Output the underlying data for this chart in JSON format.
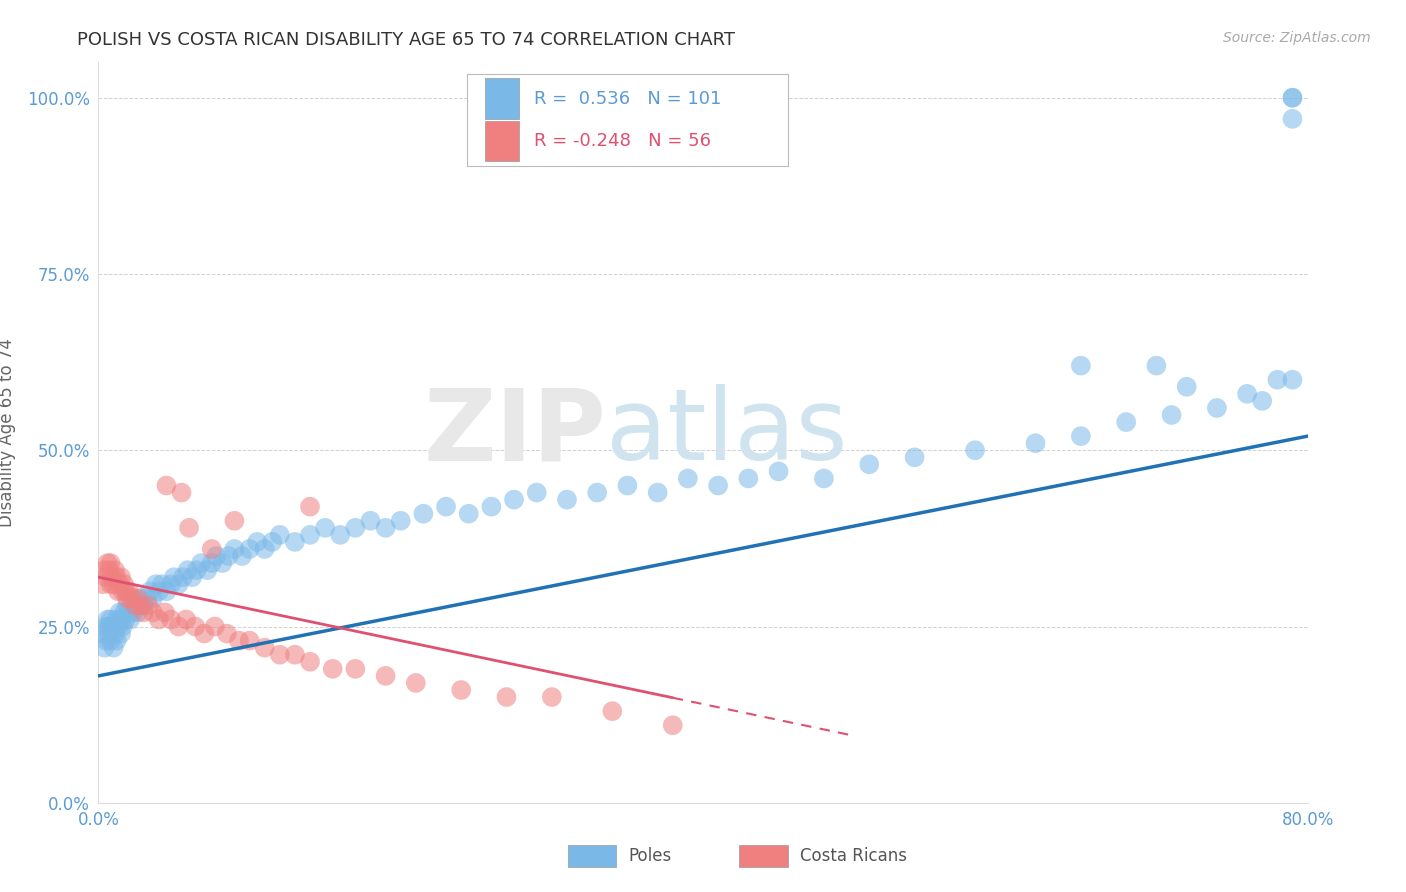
{
  "title": "POLISH VS COSTA RICAN DISABILITY AGE 65 TO 74 CORRELATION CHART",
  "source_text": "Source: ZipAtlas.com",
  "ylabel": "Disability Age 65 to 74",
  "xlabel_poles": "Poles",
  "xlabel_costa": "Costa Ricans",
  "xmin": 0.0,
  "xmax": 0.8,
  "ymin": 0.0,
  "ymax": 1.05,
  "yticks": [
    0.0,
    0.25,
    0.5,
    0.75,
    1.0
  ],
  "ytick_labels": [
    "0.0%",
    "25.0%",
    "50.0%",
    "75.0%",
    "100.0%"
  ],
  "xtick_positions": [
    0.0,
    0.16,
    0.32,
    0.48,
    0.64,
    0.8
  ],
  "xtick_labels": [
    "0.0%",
    "",
    "",
    "",
    "",
    "80.0%"
  ],
  "poles_color": "#7ab8e8",
  "costa_color": "#f08080",
  "poles_R": 0.536,
  "poles_N": 101,
  "costa_R": -0.248,
  "costa_N": 56,
  "poles_scatter_x": [
    0.003,
    0.004,
    0.005,
    0.005,
    0.006,
    0.007,
    0.007,
    0.008,
    0.008,
    0.009,
    0.01,
    0.01,
    0.011,
    0.012,
    0.012,
    0.013,
    0.014,
    0.015,
    0.015,
    0.016,
    0.017,
    0.018,
    0.019,
    0.02,
    0.021,
    0.022,
    0.023,
    0.024,
    0.025,
    0.026,
    0.027,
    0.028,
    0.03,
    0.032,
    0.034,
    0.036,
    0.038,
    0.04,
    0.042,
    0.045,
    0.048,
    0.05,
    0.053,
    0.056,
    0.059,
    0.062,
    0.065,
    0.068,
    0.072,
    0.075,
    0.078,
    0.082,
    0.086,
    0.09,
    0.095,
    0.1,
    0.105,
    0.11,
    0.115,
    0.12,
    0.13,
    0.14,
    0.15,
    0.16,
    0.17,
    0.18,
    0.19,
    0.2,
    0.215,
    0.23,
    0.245,
    0.26,
    0.275,
    0.29,
    0.31,
    0.33,
    0.35,
    0.37,
    0.39,
    0.41,
    0.43,
    0.45,
    0.48,
    0.51,
    0.54,
    0.58,
    0.62,
    0.65,
    0.68,
    0.71,
    0.74,
    0.76,
    0.77,
    0.78,
    0.79,
    0.65,
    0.7,
    0.72,
    0.79,
    0.79,
    0.79
  ],
  "poles_scatter_y": [
    0.24,
    0.22,
    0.25,
    0.23,
    0.26,
    0.24,
    0.25,
    0.26,
    0.23,
    0.25,
    0.22,
    0.25,
    0.24,
    0.26,
    0.23,
    0.25,
    0.27,
    0.24,
    0.26,
    0.25,
    0.27,
    0.26,
    0.28,
    0.27,
    0.26,
    0.28,
    0.27,
    0.29,
    0.28,
    0.27,
    0.28,
    0.29,
    0.28,
    0.29,
    0.3,
    0.29,
    0.31,
    0.3,
    0.31,
    0.3,
    0.31,
    0.32,
    0.31,
    0.32,
    0.33,
    0.32,
    0.33,
    0.34,
    0.33,
    0.34,
    0.35,
    0.34,
    0.35,
    0.36,
    0.35,
    0.36,
    0.37,
    0.36,
    0.37,
    0.38,
    0.37,
    0.38,
    0.39,
    0.38,
    0.39,
    0.4,
    0.39,
    0.4,
    0.41,
    0.42,
    0.41,
    0.42,
    0.43,
    0.44,
    0.43,
    0.44,
    0.45,
    0.44,
    0.46,
    0.45,
    0.46,
    0.47,
    0.46,
    0.48,
    0.49,
    0.5,
    0.51,
    0.52,
    0.54,
    0.55,
    0.56,
    0.58,
    0.57,
    0.6,
    0.6,
    0.62,
    0.62,
    0.59,
    1.0,
    1.0,
    0.97
  ],
  "costa_scatter_x": [
    0.003,
    0.004,
    0.005,
    0.006,
    0.007,
    0.008,
    0.008,
    0.009,
    0.01,
    0.011,
    0.012,
    0.013,
    0.014,
    0.015,
    0.016,
    0.017,
    0.018,
    0.019,
    0.02,
    0.022,
    0.024,
    0.026,
    0.028,
    0.03,
    0.033,
    0.036,
    0.04,
    0.044,
    0.048,
    0.053,
    0.058,
    0.064,
    0.07,
    0.077,
    0.085,
    0.093,
    0.1,
    0.11,
    0.12,
    0.13,
    0.14,
    0.155,
    0.17,
    0.19,
    0.21,
    0.24,
    0.27,
    0.3,
    0.34,
    0.38,
    0.14,
    0.06,
    0.075,
    0.055,
    0.09,
    0.045
  ],
  "costa_scatter_y": [
    0.31,
    0.33,
    0.32,
    0.34,
    0.33,
    0.31,
    0.34,
    0.32,
    0.31,
    0.33,
    0.32,
    0.3,
    0.31,
    0.32,
    0.3,
    0.31,
    0.3,
    0.29,
    0.3,
    0.29,
    0.28,
    0.29,
    0.28,
    0.27,
    0.28,
    0.27,
    0.26,
    0.27,
    0.26,
    0.25,
    0.26,
    0.25,
    0.24,
    0.25,
    0.24,
    0.23,
    0.23,
    0.22,
    0.21,
    0.21,
    0.2,
    0.19,
    0.19,
    0.18,
    0.17,
    0.16,
    0.15,
    0.15,
    0.13,
    0.11,
    0.42,
    0.39,
    0.36,
    0.44,
    0.4,
    0.45
  ],
  "poles_regline_x": [
    0.0,
    0.8
  ],
  "poles_regline_y": [
    0.18,
    0.52
  ],
  "costa_regline_x": [
    0.0,
    0.5
  ],
  "costa_regline_y": [
    0.32,
    0.095
  ],
  "watermark_zip": "ZIP",
  "watermark_atlas": "atlas",
  "background_color": "#ffffff",
  "grid_color": "#cccccc",
  "legend_R_label": "R = ",
  "legend_N_label": "N = "
}
